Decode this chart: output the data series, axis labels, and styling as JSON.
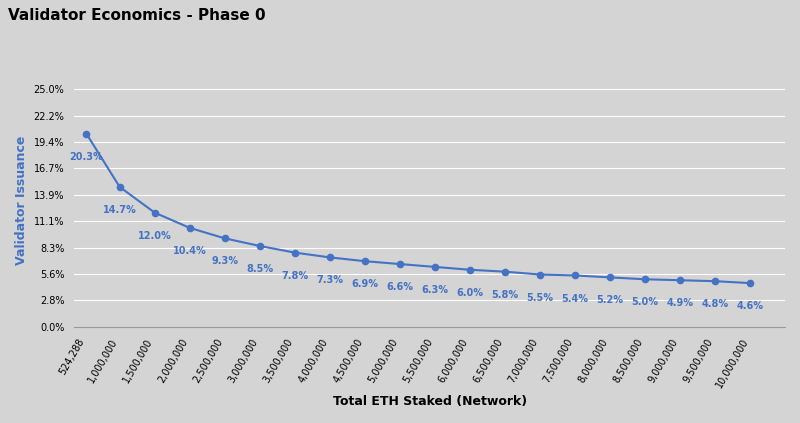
{
  "title": "Validator Economics - Phase 0",
  "xlabel": "Total ETH Staked (Network)",
  "ylabel": "Validator Issuance",
  "background_color": "#d4d4d4",
  "line_color": "#4472c4",
  "label_color": "#4472c4",
  "x_values": [
    524288,
    1000000,
    1500000,
    2000000,
    2500000,
    3000000,
    3500000,
    4000000,
    4500000,
    5000000,
    5500000,
    6000000,
    6500000,
    7000000,
    7500000,
    8000000,
    8500000,
    9000000,
    9500000,
    10000000
  ],
  "y_values": [
    0.203,
    0.147,
    0.12,
    0.104,
    0.093,
    0.085,
    0.078,
    0.073,
    0.069,
    0.066,
    0.063,
    0.06,
    0.058,
    0.055,
    0.054,
    0.052,
    0.05,
    0.049,
    0.048,
    0.046
  ],
  "y_labels": [
    "20.3%",
    "14.7%",
    "12.0%",
    "10.4%",
    "9.3%",
    "8.5%",
    "7.8%",
    "7.3%",
    "6.9%",
    "6.6%",
    "6.3%",
    "6.0%",
    "5.8%",
    "5.5%",
    "5.4%",
    "5.2%",
    "5.0%",
    "4.9%",
    "4.8%",
    "4.6%"
  ],
  "yticks": [
    0.0,
    0.028,
    0.056,
    0.083,
    0.111,
    0.139,
    0.167,
    0.194,
    0.222,
    0.25
  ],
  "ytick_labels": [
    "0.0%",
    "2.8%",
    "5.6%",
    "8.3%",
    "11.1%",
    "13.9%",
    "16.7%",
    "19.4%",
    "22.2%",
    "25.0%"
  ],
  "xtick_labels": [
    "524,288",
    "1,000,000",
    "1,500,000",
    "2,000,000",
    "2,500,000",
    "3,000,000",
    "3,500,000",
    "4,000,000",
    "4,500,000",
    "5,000,000",
    "5,500,000",
    "6,000,000",
    "6,500,000",
    "7,000,000",
    "7,500,000",
    "8,000,000",
    "8,500,000",
    "9,000,000",
    "9,500,000",
    "10,000,000"
  ],
  "title_fontsize": 11,
  "axis_label_fontsize": 9,
  "tick_fontsize": 7,
  "data_label_fontsize": 7
}
